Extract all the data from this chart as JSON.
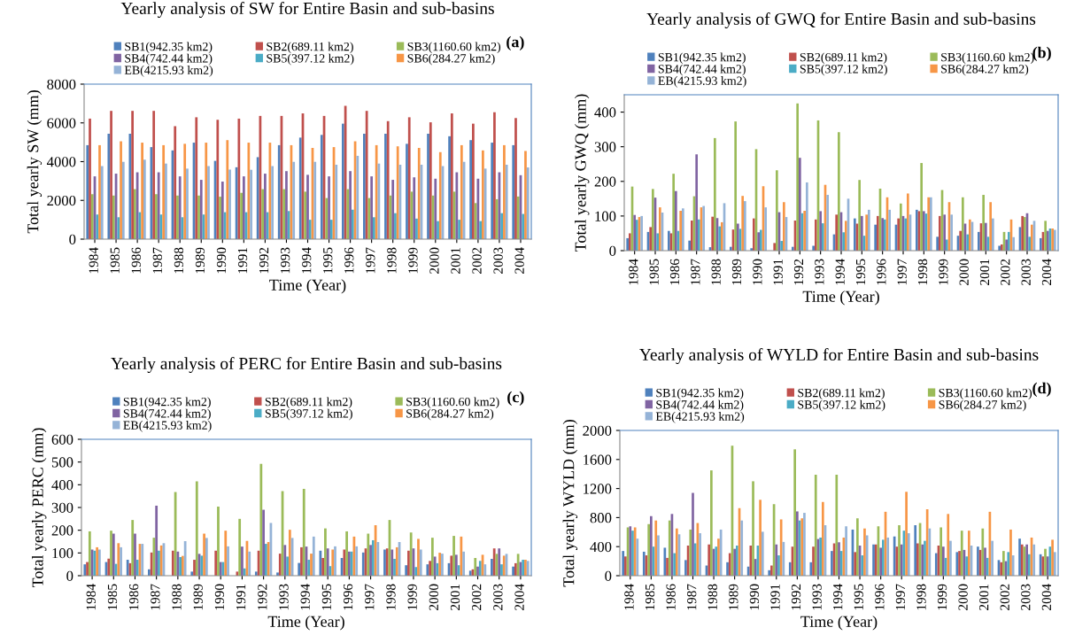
{
  "chart_data": [
    {
      "type": "bar",
      "title": "Yearly analysis of SW for Entire Basin and sub-basins",
      "xlabel": "Time (Year)",
      "ylabel": "Total yearly SW (mm)",
      "annotations": [
        "(a)"
      ],
      "legend": "top",
      "grid": false,
      "categories": [
        "1984",
        "1985",
        "1986",
        "1987",
        "1988",
        "1989",
        "1990",
        "1991",
        "1992",
        "1993",
        "1994",
        "1995",
        "1996",
        "1997",
        "1998",
        "1999",
        "2000",
        "2001",
        "2002",
        "2003",
        "2004"
      ],
      "ylim": [
        0,
        8000
      ],
      "yticks": [
        0,
        2000,
        4000,
        6000,
        8000
      ],
      "series": [
        {
          "name": "SB1(942.35 km2)",
          "color": "#4f81bd",
          "values": [
            4850,
            5440,
            5440,
            4750,
            4580,
            4980,
            4040,
            3710,
            4230,
            4850,
            5240,
            5380,
            5960,
            5440,
            5440,
            4920,
            5440,
            5310,
            5110,
            4980,
            4850
          ]
        },
        {
          "name": "SB2(689.11 km2)",
          "color": "#c0504d",
          "values": [
            6220,
            6620,
            6620,
            6620,
            5830,
            6290,
            6160,
            6220,
            6360,
            6360,
            6490,
            6360,
            6880,
            6620,
            6090,
            6290,
            6030,
            6490,
            5960,
            6550,
            6250
          ]
        },
        {
          "name": "SB3(1160.60 km2)",
          "color": "#9bbb59",
          "values": [
            2320,
            2250,
            2580,
            2320,
            2250,
            2250,
            2190,
            2390,
            2580,
            2580,
            2450,
            2120,
            2580,
            2120,
            2250,
            2450,
            2250,
            2450,
            1860,
            2060,
            2200
          ]
        },
        {
          "name": "SB4(742.44 km2)",
          "color": "#8064a2",
          "values": [
            3240,
            3380,
            3450,
            3450,
            3240,
            3060,
            2970,
            3240,
            3380,
            3510,
            3320,
            3240,
            3510,
            3240,
            3060,
            3190,
            3120,
            3450,
            3120,
            3450,
            3300
          ]
        },
        {
          "name": "SB5(397.12 km2)",
          "color": "#4bacc6",
          "values": [
            1270,
            1130,
            1390,
            1270,
            1130,
            1270,
            1390,
            1390,
            1390,
            1450,
            1000,
            1000,
            1520,
            1130,
            1340,
            1060,
            930,
            1000,
            930,
            1340,
            1300
          ]
        },
        {
          "name": "SB6(284.27 km2)",
          "color": "#f79646",
          "values": [
            4850,
            5050,
            4980,
            4850,
            4920,
            4980,
            5110,
            4980,
            4980,
            4850,
            4710,
            4750,
            5050,
            4850,
            4790,
            4710,
            4490,
            4850,
            4580,
            4850,
            4550
          ]
        },
        {
          "name": "EB(4215.93 km2)",
          "color": "#95b3d7",
          "values": [
            3770,
            3990,
            4100,
            3900,
            3640,
            3770,
            3590,
            3580,
            3770,
            3990,
            3990,
            3840,
            4300,
            3900,
            3840,
            3840,
            3770,
            3990,
            3640,
            3840,
            3700
          ]
        }
      ]
    },
    {
      "type": "bar",
      "title": "Yearly analysis of GWQ for Entire Basin and sub-basins",
      "xlabel": "Time (Year)",
      "ylabel": "Total yearly GWQ (mm)",
      "annotations": [
        "(b)"
      ],
      "legend": "top",
      "grid": false,
      "categories": [
        "1984",
        "1985",
        "1986",
        "1987",
        "1988",
        "1989",
        "1990",
        "1991",
        "1992",
        "1993",
        "1994",
        "1995",
        "1996",
        "1997",
        "1998",
        "1999",
        "2000",
        "2001",
        "2002",
        "2003",
        "2004"
      ],
      "ylim": [
        0,
        450
      ],
      "yticks": [
        0,
        100,
        200,
        300,
        400
      ],
      "series": [
        {
          "name": "SB1(942.35 km2)",
          "color": "#4f81bd",
          "values": [
            36,
            54,
            57,
            29,
            10,
            11,
            7,
            null,
            11,
            14,
            47,
            93,
            75,
            75,
            118,
            40,
            43,
            54,
            14,
            68,
            36
          ]
        },
        {
          "name": "SB2(689.11 km2)",
          "color": "#c0504d",
          "values": [
            50,
            68,
            50,
            87,
            98,
            61,
            93,
            22,
            87,
            90,
            104,
            78,
            100,
            93,
            114,
            100,
            57,
            79,
            18,
            100,
            54
          ]
        },
        {
          "name": "SB3(1160.60 km2)",
          "color": "#9bbb59",
          "values": [
            185,
            178,
            222,
            157,
            325,
            373,
            293,
            232,
            425,
            376,
            342,
            204,
            179,
            136,
            253,
            175,
            154,
            161,
            54,
            97,
            86
          ]
        },
        {
          "name": "SB4(742.44 km2)",
          "color": "#8064a2",
          "values": [
            103,
            153,
            172,
            278,
            94,
            78,
            53,
            111,
            268,
            114,
            111,
            100,
            94,
            100,
            114,
            104,
            78,
            80,
            32,
            108,
            57
          ]
        },
        {
          "name": "SB5(397.12 km2)",
          "color": "#4bacc6",
          "values": [
            89,
            50,
            57,
            90,
            70,
            63,
            60,
            28,
            108,
            79,
            53,
            43,
            90,
            93,
            107,
            32,
            47,
            40,
            54,
            40,
            64
          ]
        },
        {
          "name": "SB6(284.27 km2)",
          "color": "#f79646",
          "values": [
            97,
            125,
            115,
            125,
            82,
            158,
            186,
            140,
            115,
            190,
            86,
            104,
            154,
            165,
            154,
            140,
            90,
            140,
            90,
            75,
            64
          ]
        },
        {
          "name": "EB(4215.93 km2)",
          "color": "#95b3d7",
          "values": [
            100,
            110,
            122,
            129,
            137,
            143,
            125,
            97,
            197,
            161,
            150,
            118,
            118,
            104,
            154,
            104,
            83,
            93,
            39,
            86,
            60
          ]
        }
      ]
    },
    {
      "type": "bar",
      "title": "Yearly analysis of PERC for Entire Basin and sub-basins",
      "xlabel": "Time (Year)",
      "ylabel": "Total yearly PERC (mm)",
      "annotations": [
        "(c)"
      ],
      "legend": "top",
      "grid": false,
      "categories": [
        "1984",
        "1985",
        "1986",
        "1987",
        "1988",
        "1989",
        "1990",
        "1991",
        "1992",
        "1993",
        "1994",
        "1995",
        "1996",
        "1997",
        "1998",
        "1999",
        "2000",
        "2001",
        "2002",
        "2003",
        "2004"
      ],
      "ylim": [
        0,
        600
      ],
      "yticks": [
        0,
        100,
        200,
        300,
        400,
        500,
        600
      ],
      "series": [
        {
          "name": "SB1(942.35 km2)",
          "color": "#4f81bd",
          "values": [
            50,
            60,
            70,
            28,
            null,
            18,
            null,
            null,
            18,
            14,
            56,
            110,
            78,
            102,
            115,
            46,
            50,
            55,
            22,
            74,
            40
          ]
        },
        {
          "name": "SB2(689.11 km2)",
          "color": "#c0504d",
          "values": [
            60,
            75,
            55,
            102,
            110,
            70,
            110,
            18,
            110,
            97,
            125,
            78,
            115,
            120,
            120,
            110,
            65,
            88,
            28,
            120,
            55
          ]
        },
        {
          "name": "SB3(1160.60 km2)",
          "color": "#9bbb59",
          "values": [
            195,
            198,
            245,
            167,
            368,
            415,
            304,
            250,
            492,
            372,
            382,
            208,
            195,
            185,
            245,
            190,
            167,
            175,
            78,
            96,
            96
          ]
        },
        {
          "name": "SB4(742.44 km2)",
          "color": "#8064a2",
          "values": [
            115,
            185,
            185,
            308,
            106,
            96,
            60,
            128,
            290,
            135,
            128,
            120,
            106,
            135,
            115,
            120,
            84,
            92,
            40,
            120,
            60
          ]
        },
        {
          "name": "SB5(397.12 km2)",
          "color": "#4bacc6",
          "values": [
            110,
            52,
            70,
            110,
            82,
            88,
            60,
            32,
            140,
            84,
            70,
            42,
            106,
            156,
            74,
            38,
            55,
            46,
            65,
            50,
            70
          ]
        },
        {
          "name": "SB6(284.27 km2)",
          "color": "#f79646",
          "values": [
            125,
            143,
            140,
            133,
            87,
            185,
            198,
            153,
            148,
            202,
            97,
            115,
            172,
            222,
            125,
            162,
            101,
            172,
            92,
            88,
            70
          ]
        },
        {
          "name": "EB(4215.93 km2)",
          "color": "#95b3d7",
          "values": [
            115,
            125,
            140,
            143,
            152,
            166,
            129,
            106,
            232,
            166,
            172,
            129,
            129,
            148,
            148,
            115,
            97,
            106,
            50,
            96,
            65
          ]
        }
      ]
    },
    {
      "type": "bar",
      "title": "Yearly analysis of WYLD for Entire Basin and sub-basins",
      "xlabel": "Time (Year)",
      "ylabel": "Total yearly WYLD (mm)",
      "annotations": [
        "(d)"
      ],
      "legend": "top",
      "grid": false,
      "categories": [
        "1984",
        "1985",
        "1986",
        "1987",
        "1988",
        "1989",
        "1990",
        "1991",
        "1992",
        "1993",
        "1994",
        "1995",
        "1996",
        "1997",
        "1998",
        "1999",
        "2000",
        "2001",
        "2002",
        "2003",
        "2004"
      ],
      "ylim": [
        0,
        2000
      ],
      "yticks": [
        0,
        400,
        800,
        1200,
        1600,
        2000
      ],
      "series": [
        {
          "name": "SB1(942.35 km2)",
          "color": "#4f81bd",
          "values": [
            340,
            330,
            385,
            215,
            140,
            185,
            125,
            75,
            185,
            185,
            340,
            635,
            430,
            540,
            695,
            310,
            325,
            400,
            215,
            510,
            295
          ]
        },
        {
          "name": "SB2(689.11 km2)",
          "color": "#c0504d",
          "values": [
            265,
            280,
            245,
            415,
            430,
            310,
            415,
            140,
            400,
            400,
            445,
            325,
            430,
            400,
            445,
            415,
            340,
            355,
            185,
            430,
            265
          ]
        },
        {
          "name": "SB3(1160.60 km2)",
          "color": "#9bbb59",
          "values": [
            665,
            710,
            760,
            635,
            1450,
            1790,
            1300,
            985,
            1740,
            1390,
            1390,
            790,
            680,
            695,
            725,
            665,
            620,
            650,
            340,
            400,
            370
          ]
        },
        {
          "name": "SB4(742.44 km2)",
          "color": "#8064a2",
          "values": [
            680,
            820,
            850,
            1140,
            370,
            370,
            230,
            430,
            885,
            505,
            460,
            415,
            385,
            430,
            430,
            400,
            355,
            385,
            200,
            430,
            265
          ]
        },
        {
          "name": "SB5(397.12 km2)",
          "color": "#4bacc6",
          "values": [
            620,
            400,
            310,
            445,
            400,
            415,
            415,
            280,
            760,
            525,
            340,
            280,
            495,
            620,
            480,
            245,
            265,
            245,
            325,
            295,
            400
          ]
        },
        {
          "name": "SB6(284.27 km2)",
          "color": "#f79646",
          "values": [
            665,
            760,
            650,
            725,
            510,
            930,
            1045,
            775,
            790,
            1015,
            525,
            650,
            880,
            1155,
            915,
            850,
            620,
            880,
            635,
            525,
            495
          ]
        },
        {
          "name": "EB(4215.93 km2)",
          "color": "#95b3d7",
          "values": [
            510,
            555,
            570,
            585,
            635,
            760,
            605,
            465,
            865,
            695,
            680,
            555,
            525,
            585,
            650,
            480,
            415,
            480,
            280,
            430,
            325
          ]
        }
      ]
    }
  ]
}
